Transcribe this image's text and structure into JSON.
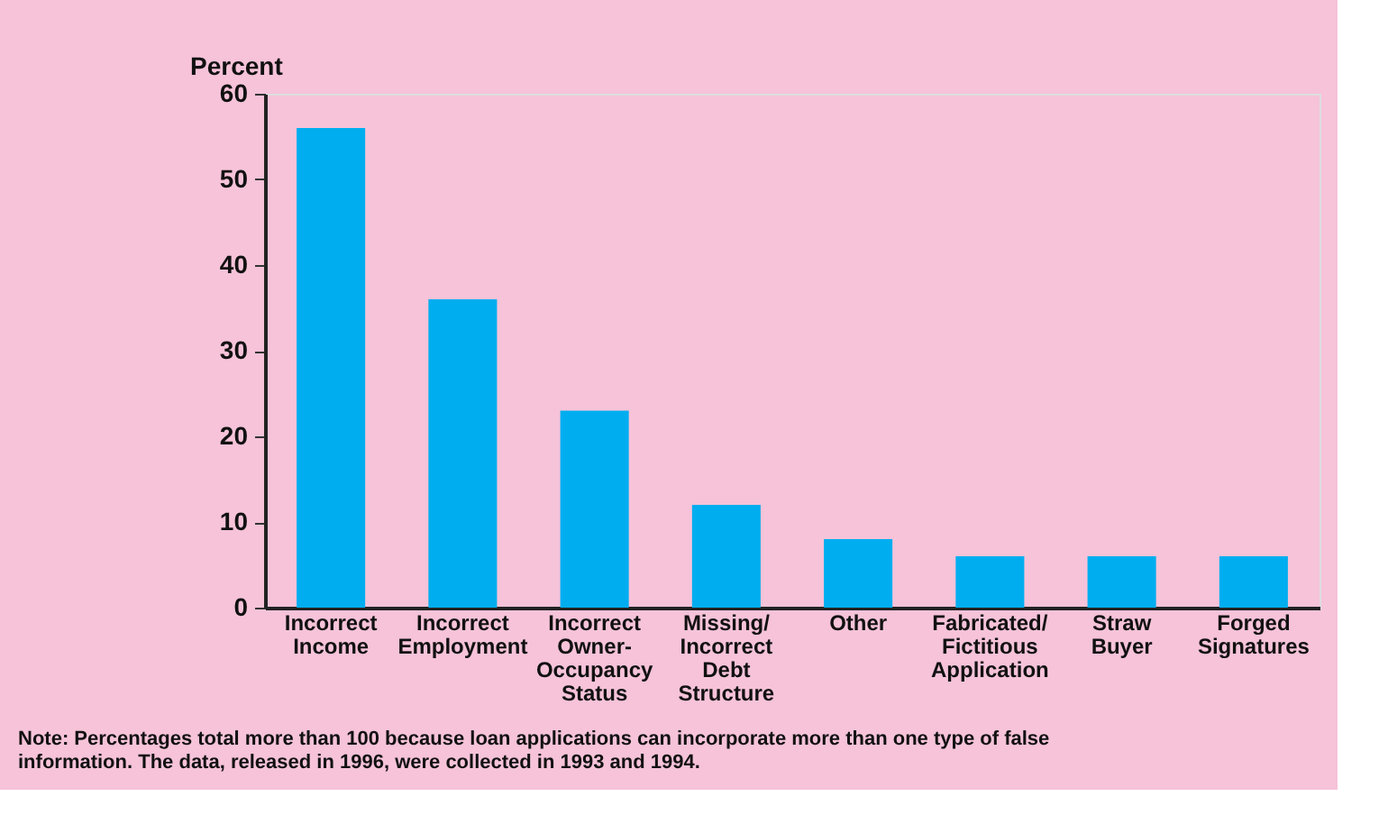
{
  "chart_data": {
    "type": "bar",
    "ylabel": "Percent",
    "categories": [
      "Incorrect Income",
      "Incorrect Employment",
      "Incorrect Owner-Occupancy Status",
      "Missing/Incorrect Debt Structure",
      "Other",
      "Fabricated/Fictitious Application",
      "Straw Buyer",
      "Forged Signatures"
    ],
    "values": [
      56,
      36,
      23,
      12,
      8,
      6,
      6,
      6
    ],
    "color": "#00aeef",
    "ylim": [
      0,
      60
    ],
    "yticks": [
      0,
      10,
      20,
      30,
      40,
      50,
      60
    ],
    "grid": false,
    "annotations": [
      "Note: Percentages total more than 100 because loan applications can incorporate more than one type of false information. The data, released in 1996, were collected in 1993 and 1994."
    ]
  }
}
